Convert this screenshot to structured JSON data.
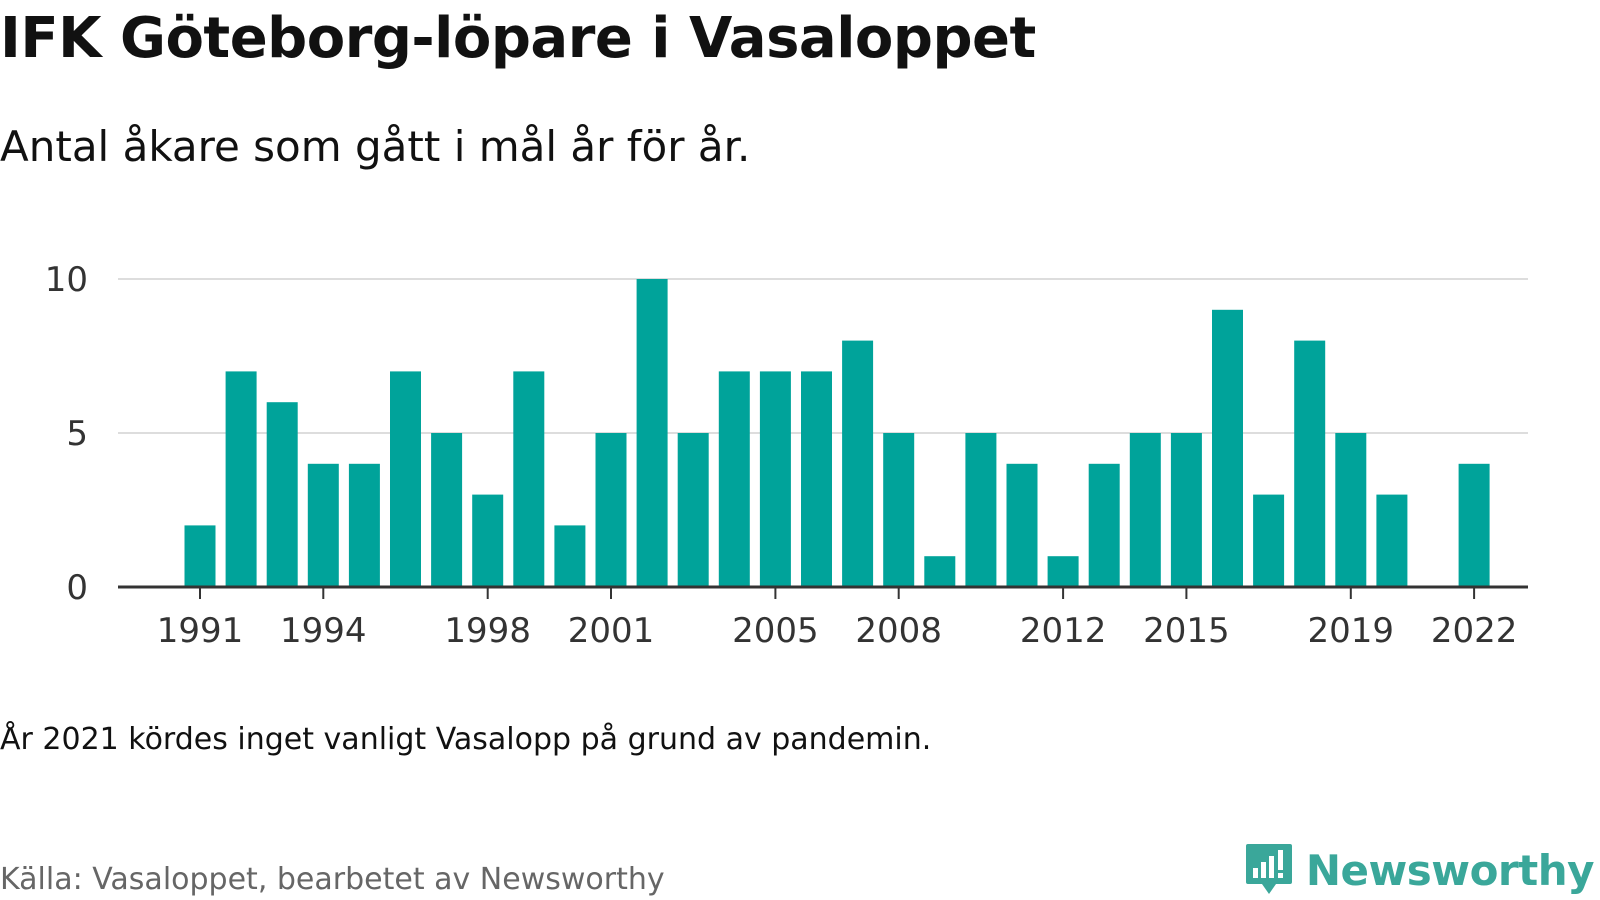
{
  "title": "IFK Göteborg-löpare i Vasaloppet",
  "subtitle": "Antal åkare som gått i mål år för år.",
  "note": "År 2021 kördes inget vanligt Vasalopp på grund av pandemin.",
  "source": "Källa: Vasaloppet, bearbetet av Newsworthy",
  "logo": {
    "text": "Newsworthy",
    "icon": "newsworthy-chart-bubble-icon",
    "color": "#3aa79a"
  },
  "colors": {
    "bar": "#00a39a",
    "grid": "#dddddd",
    "axis": "#333333"
  },
  "chart_data": {
    "type": "bar",
    "title": "IFK Göteborg-löpare i Vasaloppet",
    "subtitle": "Antal åkare som gått i mål år för år.",
    "xlabel": "",
    "ylabel": "",
    "categories": [
      1991,
      1992,
      1993,
      1994,
      1995,
      1996,
      1997,
      1998,
      1999,
      2000,
      2001,
      2002,
      2003,
      2004,
      2005,
      2006,
      2007,
      2008,
      2009,
      2010,
      2011,
      2012,
      2013,
      2014,
      2015,
      2016,
      2017,
      2018,
      2019,
      2020,
      2021,
      2022
    ],
    "values": [
      2,
      7,
      6,
      4,
      4,
      7,
      5,
      3,
      7,
      2,
      5,
      10,
      5,
      7,
      7,
      7,
      8,
      5,
      1,
      5,
      4,
      1,
      4,
      5,
      5,
      9,
      3,
      8,
      5,
      3,
      null,
      4
    ],
    "x_tick_labels": [
      "1991",
      "1994",
      "1998",
      "2001",
      "2005",
      "2008",
      "2012",
      "2015",
      "2019",
      "2022"
    ],
    "y_ticks": [
      0,
      5,
      10
    ],
    "y_tick_labels": [
      "0",
      "5",
      "10"
    ],
    "ylim": [
      0,
      10
    ],
    "grid": true,
    "legend": "none"
  }
}
